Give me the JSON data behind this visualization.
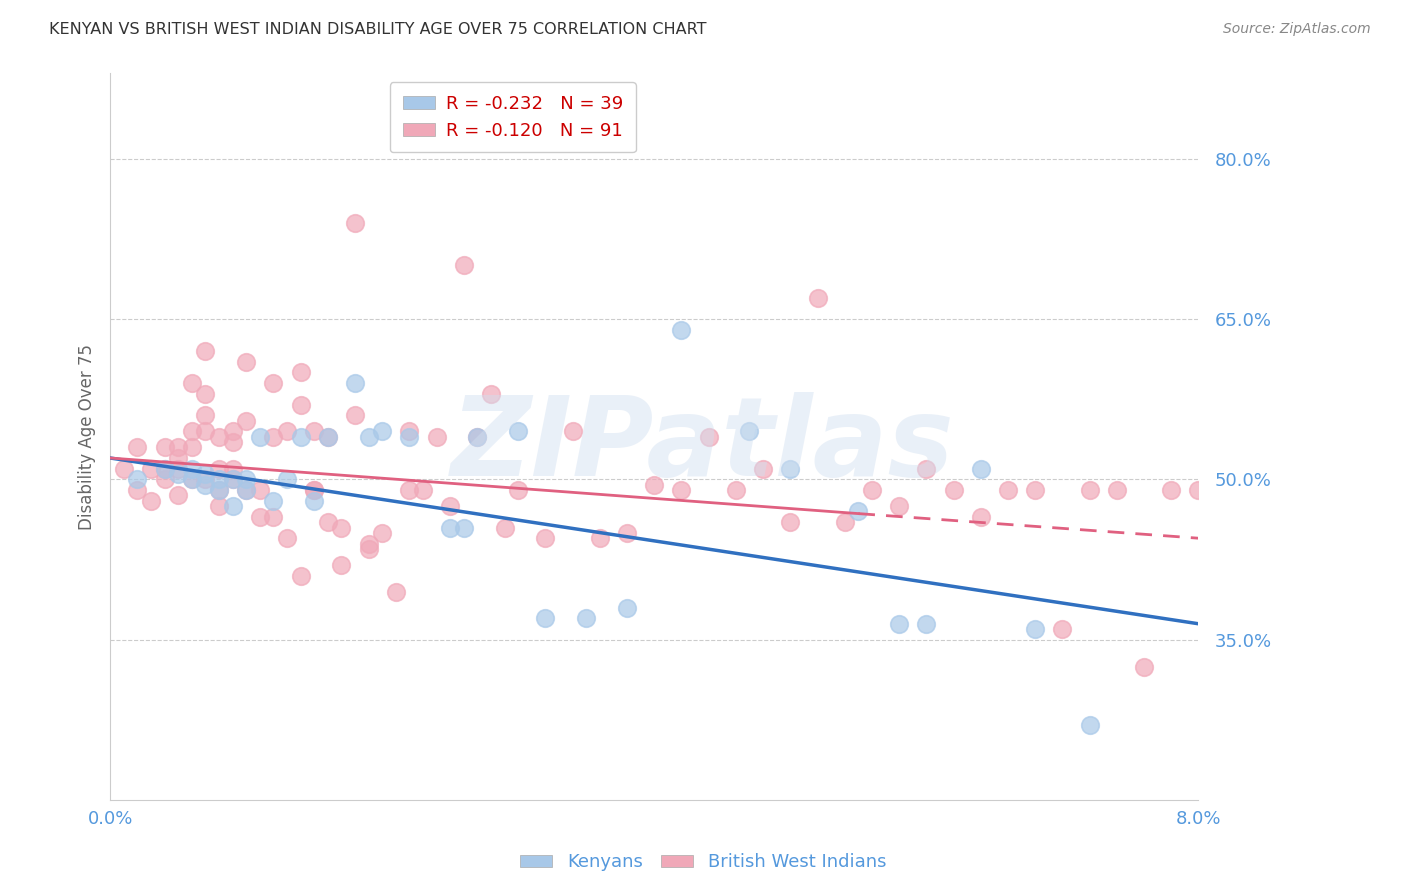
{
  "title": "KENYAN VS BRITISH WEST INDIAN DISABILITY AGE OVER 75 CORRELATION CHART",
  "source": "Source: ZipAtlas.com",
  "ylabel": "Disability Age Over 75",
  "ytick_values": [
    0.35,
    0.5,
    0.65,
    0.8
  ],
  "xlim": [
    0.0,
    0.08
  ],
  "ylim": [
    0.2,
    0.88
  ],
  "legend_entries": [
    {
      "label": "R = -0.232   N = 39",
      "color": "#a8c8e8"
    },
    {
      "label": "R = -0.120   N = 91",
      "color": "#f0a8b8"
    }
  ],
  "legend_names": [
    "Kenyans",
    "British West Indians"
  ],
  "kenyan_color": "#a8c8e8",
  "bwi_color": "#f0a8b8",
  "trend_kenyan_color": "#3070c0",
  "trend_bwi_color": "#e06080",
  "background_color": "#ffffff",
  "grid_color": "#cccccc",
  "axis_color": "#cccccc",
  "tick_label_color": "#5599dd",
  "title_color": "#333333",
  "kenyan_x": [
    0.002,
    0.004,
    0.005,
    0.006,
    0.006,
    0.007,
    0.007,
    0.008,
    0.008,
    0.009,
    0.009,
    0.01,
    0.01,
    0.011,
    0.012,
    0.013,
    0.014,
    0.015,
    0.016,
    0.018,
    0.019,
    0.02,
    0.022,
    0.025,
    0.026,
    0.027,
    0.03,
    0.032,
    0.035,
    0.038,
    0.042,
    0.047,
    0.05,
    0.055,
    0.058,
    0.06,
    0.064,
    0.068,
    0.072
  ],
  "kenyan_y": [
    0.5,
    0.51,
    0.505,
    0.5,
    0.51,
    0.495,
    0.505,
    0.49,
    0.5,
    0.475,
    0.5,
    0.5,
    0.49,
    0.54,
    0.48,
    0.5,
    0.54,
    0.48,
    0.54,
    0.59,
    0.54,
    0.545,
    0.54,
    0.455,
    0.455,
    0.54,
    0.545,
    0.37,
    0.37,
    0.38,
    0.64,
    0.545,
    0.51,
    0.47,
    0.365,
    0.365,
    0.51,
    0.36,
    0.27
  ],
  "bwi_x": [
    0.001,
    0.002,
    0.002,
    0.003,
    0.003,
    0.004,
    0.004,
    0.004,
    0.005,
    0.005,
    0.005,
    0.005,
    0.006,
    0.006,
    0.006,
    0.006,
    0.007,
    0.007,
    0.007,
    0.007,
    0.007,
    0.008,
    0.008,
    0.008,
    0.008,
    0.009,
    0.009,
    0.009,
    0.009,
    0.01,
    0.01,
    0.01,
    0.011,
    0.011,
    0.012,
    0.012,
    0.012,
    0.013,
    0.013,
    0.014,
    0.014,
    0.014,
    0.015,
    0.015,
    0.015,
    0.016,
    0.016,
    0.017,
    0.017,
    0.018,
    0.018,
    0.019,
    0.019,
    0.02,
    0.021,
    0.022,
    0.022,
    0.023,
    0.024,
    0.025,
    0.026,
    0.027,
    0.028,
    0.029,
    0.03,
    0.032,
    0.034,
    0.036,
    0.038,
    0.04,
    0.042,
    0.044,
    0.046,
    0.048,
    0.05,
    0.052,
    0.054,
    0.056,
    0.058,
    0.06,
    0.062,
    0.064,
    0.066,
    0.068,
    0.07,
    0.072,
    0.074,
    0.076,
    0.078,
    0.08,
    0.082
  ],
  "bwi_y": [
    0.51,
    0.49,
    0.53,
    0.51,
    0.48,
    0.53,
    0.51,
    0.5,
    0.52,
    0.53,
    0.51,
    0.485,
    0.545,
    0.59,
    0.53,
    0.5,
    0.58,
    0.545,
    0.62,
    0.56,
    0.5,
    0.51,
    0.54,
    0.475,
    0.49,
    0.545,
    0.535,
    0.5,
    0.51,
    0.61,
    0.555,
    0.49,
    0.49,
    0.465,
    0.59,
    0.54,
    0.465,
    0.545,
    0.445,
    0.57,
    0.6,
    0.41,
    0.545,
    0.49,
    0.49,
    0.54,
    0.46,
    0.455,
    0.42,
    0.56,
    0.74,
    0.435,
    0.44,
    0.45,
    0.395,
    0.545,
    0.49,
    0.49,
    0.54,
    0.475,
    0.7,
    0.54,
    0.58,
    0.455,
    0.49,
    0.445,
    0.545,
    0.445,
    0.45,
    0.495,
    0.49,
    0.54,
    0.49,
    0.51,
    0.46,
    0.67,
    0.46,
    0.49,
    0.475,
    0.51,
    0.49,
    0.465,
    0.49,
    0.49,
    0.36,
    0.49,
    0.49,
    0.325,
    0.49,
    0.49,
    0.49
  ],
  "trend_kenyan_x0": 0.0,
  "trend_kenyan_x1": 0.08,
  "trend_kenyan_y0": 0.52,
  "trend_kenyan_y1": 0.365,
  "trend_bwi_x0_solid": 0.0,
  "trend_bwi_x1_solid": 0.055,
  "trend_bwi_y0": 0.52,
  "trend_bwi_y1": 0.468,
  "trend_bwi_x0_dash": 0.055,
  "trend_bwi_x1_dash": 0.08,
  "trend_bwi_y0_dash": 0.468,
  "trend_bwi_y1_dash": 0.445
}
